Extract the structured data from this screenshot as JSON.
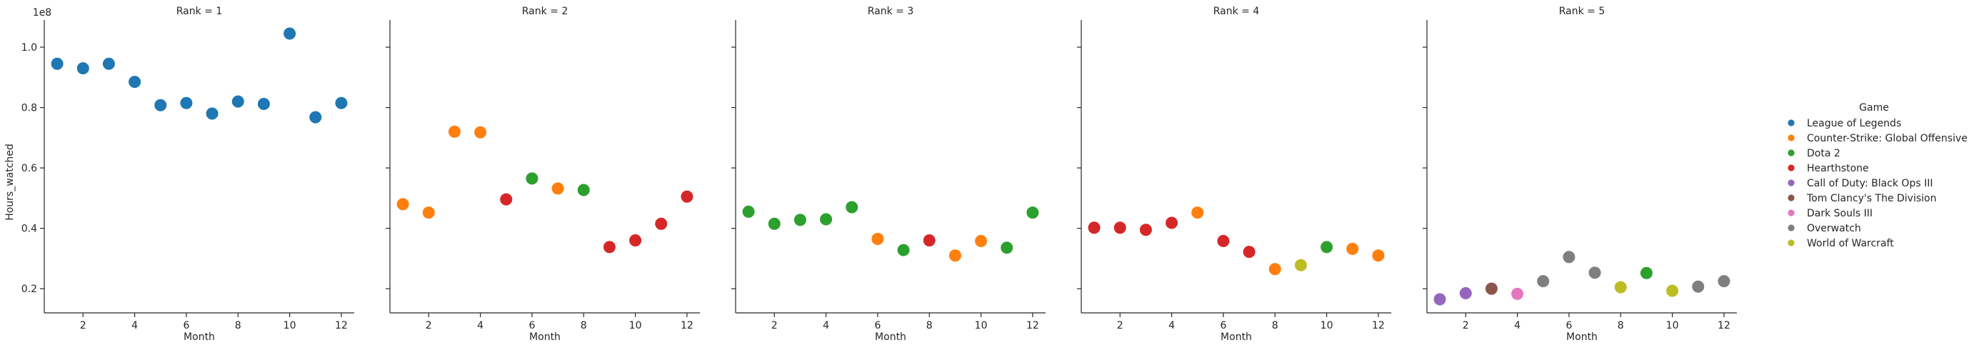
{
  "chart_data": {
    "type": "scatter",
    "facet_variable": "Rank",
    "xlabel": "Month",
    "ylabel": "Hours_watched",
    "y_offset_label": "1e8",
    "xlim": [
      0.5,
      12.5
    ],
    "ylim": [
      0.12,
      1.09
    ],
    "x_ticks": [
      2,
      4,
      6,
      8,
      10,
      12
    ],
    "y_ticks": [
      0.2,
      0.4,
      0.6,
      0.8,
      1.0
    ],
    "y_tick_labels": [
      "0.2",
      "0.4",
      "0.6",
      "0.8",
      "1.0"
    ],
    "legend": {
      "title": "Game",
      "position": "right",
      "entries": [
        {
          "name": "League of Legends",
          "color": "#1f77b4"
        },
        {
          "name": "Counter-Strike: Global Offensive",
          "color": "#ff7f0e"
        },
        {
          "name": "Dota 2",
          "color": "#2ca02c"
        },
        {
          "name": "Hearthstone",
          "color": "#d62728"
        },
        {
          "name": "Call of Duty: Black Ops III",
          "color": "#9467bd"
        },
        {
          "name": "Tom Clancy's The Division",
          "color": "#8c564b"
        },
        {
          "name": "Dark Souls III",
          "color": "#e377c2"
        },
        {
          "name": "Overwatch",
          "color": "#7f7f7f"
        },
        {
          "name": "World of Warcraft",
          "color": "#bcbd22"
        }
      ]
    },
    "panels": [
      {
        "title": "Rank = 1",
        "points": [
          {
            "month": 1,
            "value": 0.945,
            "game": "League of Legends"
          },
          {
            "month": 2,
            "value": 0.93,
            "game": "League of Legends"
          },
          {
            "month": 3,
            "value": 0.945,
            "game": "League of Legends"
          },
          {
            "month": 4,
            "value": 0.885,
            "game": "League of Legends"
          },
          {
            "month": 5,
            "value": 0.808,
            "game": "League of Legends"
          },
          {
            "month": 6,
            "value": 0.815,
            "game": "League of Legends"
          },
          {
            "month": 7,
            "value": 0.78,
            "game": "League of Legends"
          },
          {
            "month": 8,
            "value": 0.82,
            "game": "League of Legends"
          },
          {
            "month": 9,
            "value": 0.812,
            "game": "League of Legends"
          },
          {
            "month": 10,
            "value": 1.045,
            "game": "League of Legends"
          },
          {
            "month": 11,
            "value": 0.768,
            "game": "League of Legends"
          },
          {
            "month": 12,
            "value": 0.815,
            "game": "League of Legends"
          }
        ]
      },
      {
        "title": "Rank = 2",
        "points": [
          {
            "month": 1,
            "value": 0.48,
            "game": "Counter-Strike: Global Offensive"
          },
          {
            "month": 2,
            "value": 0.452,
            "game": "Counter-Strike: Global Offensive"
          },
          {
            "month": 3,
            "value": 0.72,
            "game": "Counter-Strike: Global Offensive"
          },
          {
            "month": 4,
            "value": 0.718,
            "game": "Counter-Strike: Global Offensive"
          },
          {
            "month": 5,
            "value": 0.496,
            "game": "Hearthstone"
          },
          {
            "month": 6,
            "value": 0.565,
            "game": "Dota 2"
          },
          {
            "month": 7,
            "value": 0.532,
            "game": "Counter-Strike: Global Offensive"
          },
          {
            "month": 8,
            "value": 0.527,
            "game": "Dota 2"
          },
          {
            "month": 9,
            "value": 0.338,
            "game": "Hearthstone"
          },
          {
            "month": 10,
            "value": 0.36,
            "game": "Hearthstone"
          },
          {
            "month": 11,
            "value": 0.415,
            "game": "Hearthstone"
          },
          {
            "month": 12,
            "value": 0.505,
            "game": "Hearthstone"
          }
        ]
      },
      {
        "title": "Rank = 3",
        "points": [
          {
            "month": 1,
            "value": 0.455,
            "game": "Dota 2"
          },
          {
            "month": 2,
            "value": 0.415,
            "game": "Dota 2"
          },
          {
            "month": 3,
            "value": 0.428,
            "game": "Dota 2"
          },
          {
            "month": 4,
            "value": 0.43,
            "game": "Dota 2"
          },
          {
            "month": 5,
            "value": 0.47,
            "game": "Dota 2"
          },
          {
            "month": 6,
            "value": 0.365,
            "game": "Counter-Strike: Global Offensive"
          },
          {
            "month": 7,
            "value": 0.328,
            "game": "Dota 2"
          },
          {
            "month": 8,
            "value": 0.36,
            "game": "Hearthstone"
          },
          {
            "month": 9,
            "value": 0.31,
            "game": "Counter-Strike: Global Offensive"
          },
          {
            "month": 10,
            "value": 0.358,
            "game": "Counter-Strike: Global Offensive"
          },
          {
            "month": 11,
            "value": 0.336,
            "game": "Dota 2"
          },
          {
            "month": 12,
            "value": 0.452,
            "game": "Dota 2"
          }
        ]
      },
      {
        "title": "Rank = 4",
        "points": [
          {
            "month": 1,
            "value": 0.402,
            "game": "Hearthstone"
          },
          {
            "month": 2,
            "value": 0.402,
            "game": "Hearthstone"
          },
          {
            "month": 3,
            "value": 0.395,
            "game": "Hearthstone"
          },
          {
            "month": 4,
            "value": 0.418,
            "game": "Hearthstone"
          },
          {
            "month": 5,
            "value": 0.452,
            "game": "Counter-Strike: Global Offensive"
          },
          {
            "month": 6,
            "value": 0.358,
            "game": "Hearthstone"
          },
          {
            "month": 7,
            "value": 0.322,
            "game": "Hearthstone"
          },
          {
            "month": 8,
            "value": 0.265,
            "game": "Counter-Strike: Global Offensive"
          },
          {
            "month": 9,
            "value": 0.278,
            "game": "World of Warcraft"
          },
          {
            "month": 10,
            "value": 0.338,
            "game": "Dota 2"
          },
          {
            "month": 11,
            "value": 0.332,
            "game": "Counter-Strike: Global Offensive"
          },
          {
            "month": 12,
            "value": 0.31,
            "game": "Counter-Strike: Global Offensive"
          }
        ]
      },
      {
        "title": "Rank = 5",
        "points": [
          {
            "month": 1,
            "value": 0.165,
            "game": "Call of Duty: Black Ops III"
          },
          {
            "month": 2,
            "value": 0.185,
            "game": "Call of Duty: Black Ops III"
          },
          {
            "month": 3,
            "value": 0.2,
            "game": "Tom Clancy's The Division"
          },
          {
            "month": 4,
            "value": 0.183,
            "game": "Dark Souls III"
          },
          {
            "month": 5,
            "value": 0.225,
            "game": "Overwatch"
          },
          {
            "month": 6,
            "value": 0.305,
            "game": "Overwatch"
          },
          {
            "month": 7,
            "value": 0.253,
            "game": "Overwatch"
          },
          {
            "month": 8,
            "value": 0.205,
            "game": "World of Warcraft"
          },
          {
            "month": 9,
            "value": 0.252,
            "game": "Dota 2"
          },
          {
            "month": 10,
            "value": 0.193,
            "game": "World of Warcraft"
          },
          {
            "month": 11,
            "value": 0.207,
            "game": "Overwatch"
          },
          {
            "month": 12,
            "value": 0.225,
            "game": "Overwatch"
          }
        ]
      }
    ]
  }
}
